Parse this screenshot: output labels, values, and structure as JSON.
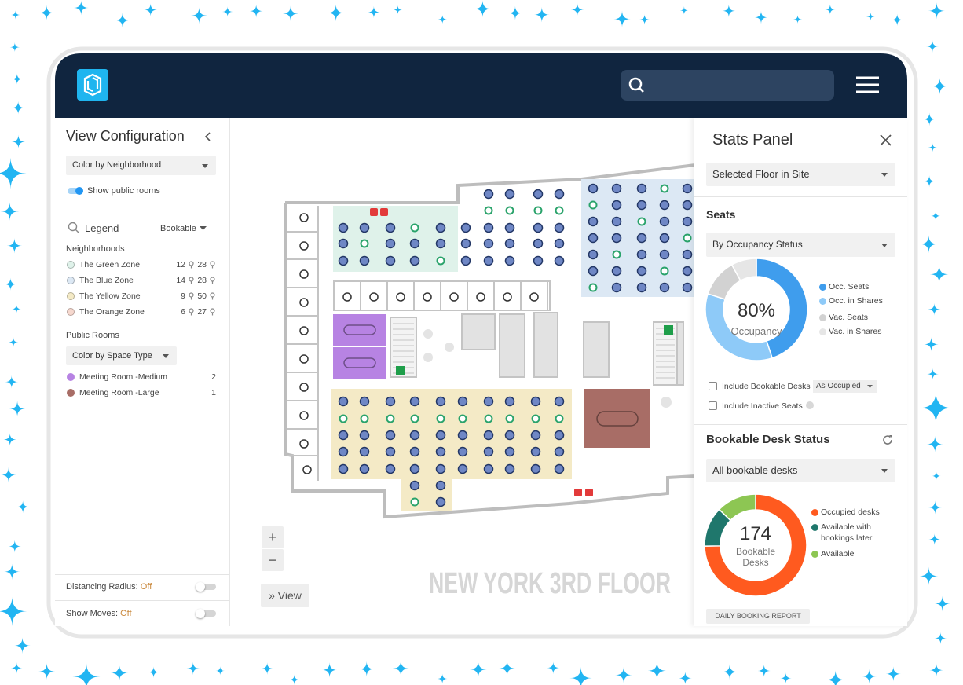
{
  "left_panel": {
    "title": "View Configuration",
    "color_by": "Color by Neighborhood",
    "show_public_rooms": "Show public rooms",
    "legend": "Legend",
    "legend_filter": "Bookable",
    "neighborhoods_title": "Neighborhoods",
    "neighborhoods": [
      {
        "name": "The Green Zone",
        "color": "#dff2ea",
        "bookable": 12,
        "total": 28
      },
      {
        "name": "The Blue Zone",
        "color": "#dce8f4",
        "bookable": 14,
        "total": 28
      },
      {
        "name": "The Yellow Zone",
        "color": "#f4eac6",
        "bookable": 9,
        "total": 50
      },
      {
        "name": "The Orange Zone",
        "color": "#f6d8ce",
        "bookable": 6,
        "total": 27
      }
    ],
    "public_rooms_title": "Public Rooms",
    "space_type": "Color by Space Type",
    "rooms": [
      {
        "name": "Meeting Room -Medium",
        "color": "#b783e3",
        "count": 2
      },
      {
        "name": "Meeting Room -Large",
        "color": "#a86d66",
        "count": 1
      }
    ],
    "distancing": {
      "label": "Distancing Radius:",
      "state": "Off"
    },
    "moves": {
      "label": "Show Moves:",
      "state": "Off"
    }
  },
  "map": {
    "floor_name": "NEW YORK 3RD FLOOR",
    "zoom_in": "+",
    "zoom_out": "−",
    "view_button": "» View"
  },
  "stats_panel": {
    "title": "Stats Panel",
    "scope": "Selected Floor in Site",
    "seats": {
      "title": "Seats",
      "grouping": "By Occupancy Status",
      "chart": {
        "type": "donut",
        "center": {
          "value": 80,
          "label": "80%"
        },
        "center_caption": "Occupancy",
        "categories": [
          "Occ. Seats",
          "Occ. in Shares",
          "Vac. Seats",
          "Vac. in Shares"
        ],
        "values": [
          45,
          35,
          12,
          8
        ],
        "colors": [
          "#3f9ded",
          "#8ecaf8",
          "#d2d2d2",
          "#e6e6e6"
        ]
      },
      "include_bookable": "Include Bookable Desks",
      "bookable_mode": "As Occupied",
      "include_inactive": "Include Inactive Seats"
    },
    "bookable": {
      "title": "Bookable Desk Status",
      "filter": "All bookable desks",
      "chart": {
        "type": "donut",
        "center": 174,
        "center_caption": "Bookable Desks",
        "categories": [
          "Occupied desks",
          "Available with bookings later",
          "Available"
        ],
        "values": [
          130,
          22,
          22
        ],
        "colors": [
          "#ff5a1f",
          "#1f776c",
          "#8dc653"
        ]
      },
      "report_button": "DAILY BOOKING REPORT"
    }
  }
}
